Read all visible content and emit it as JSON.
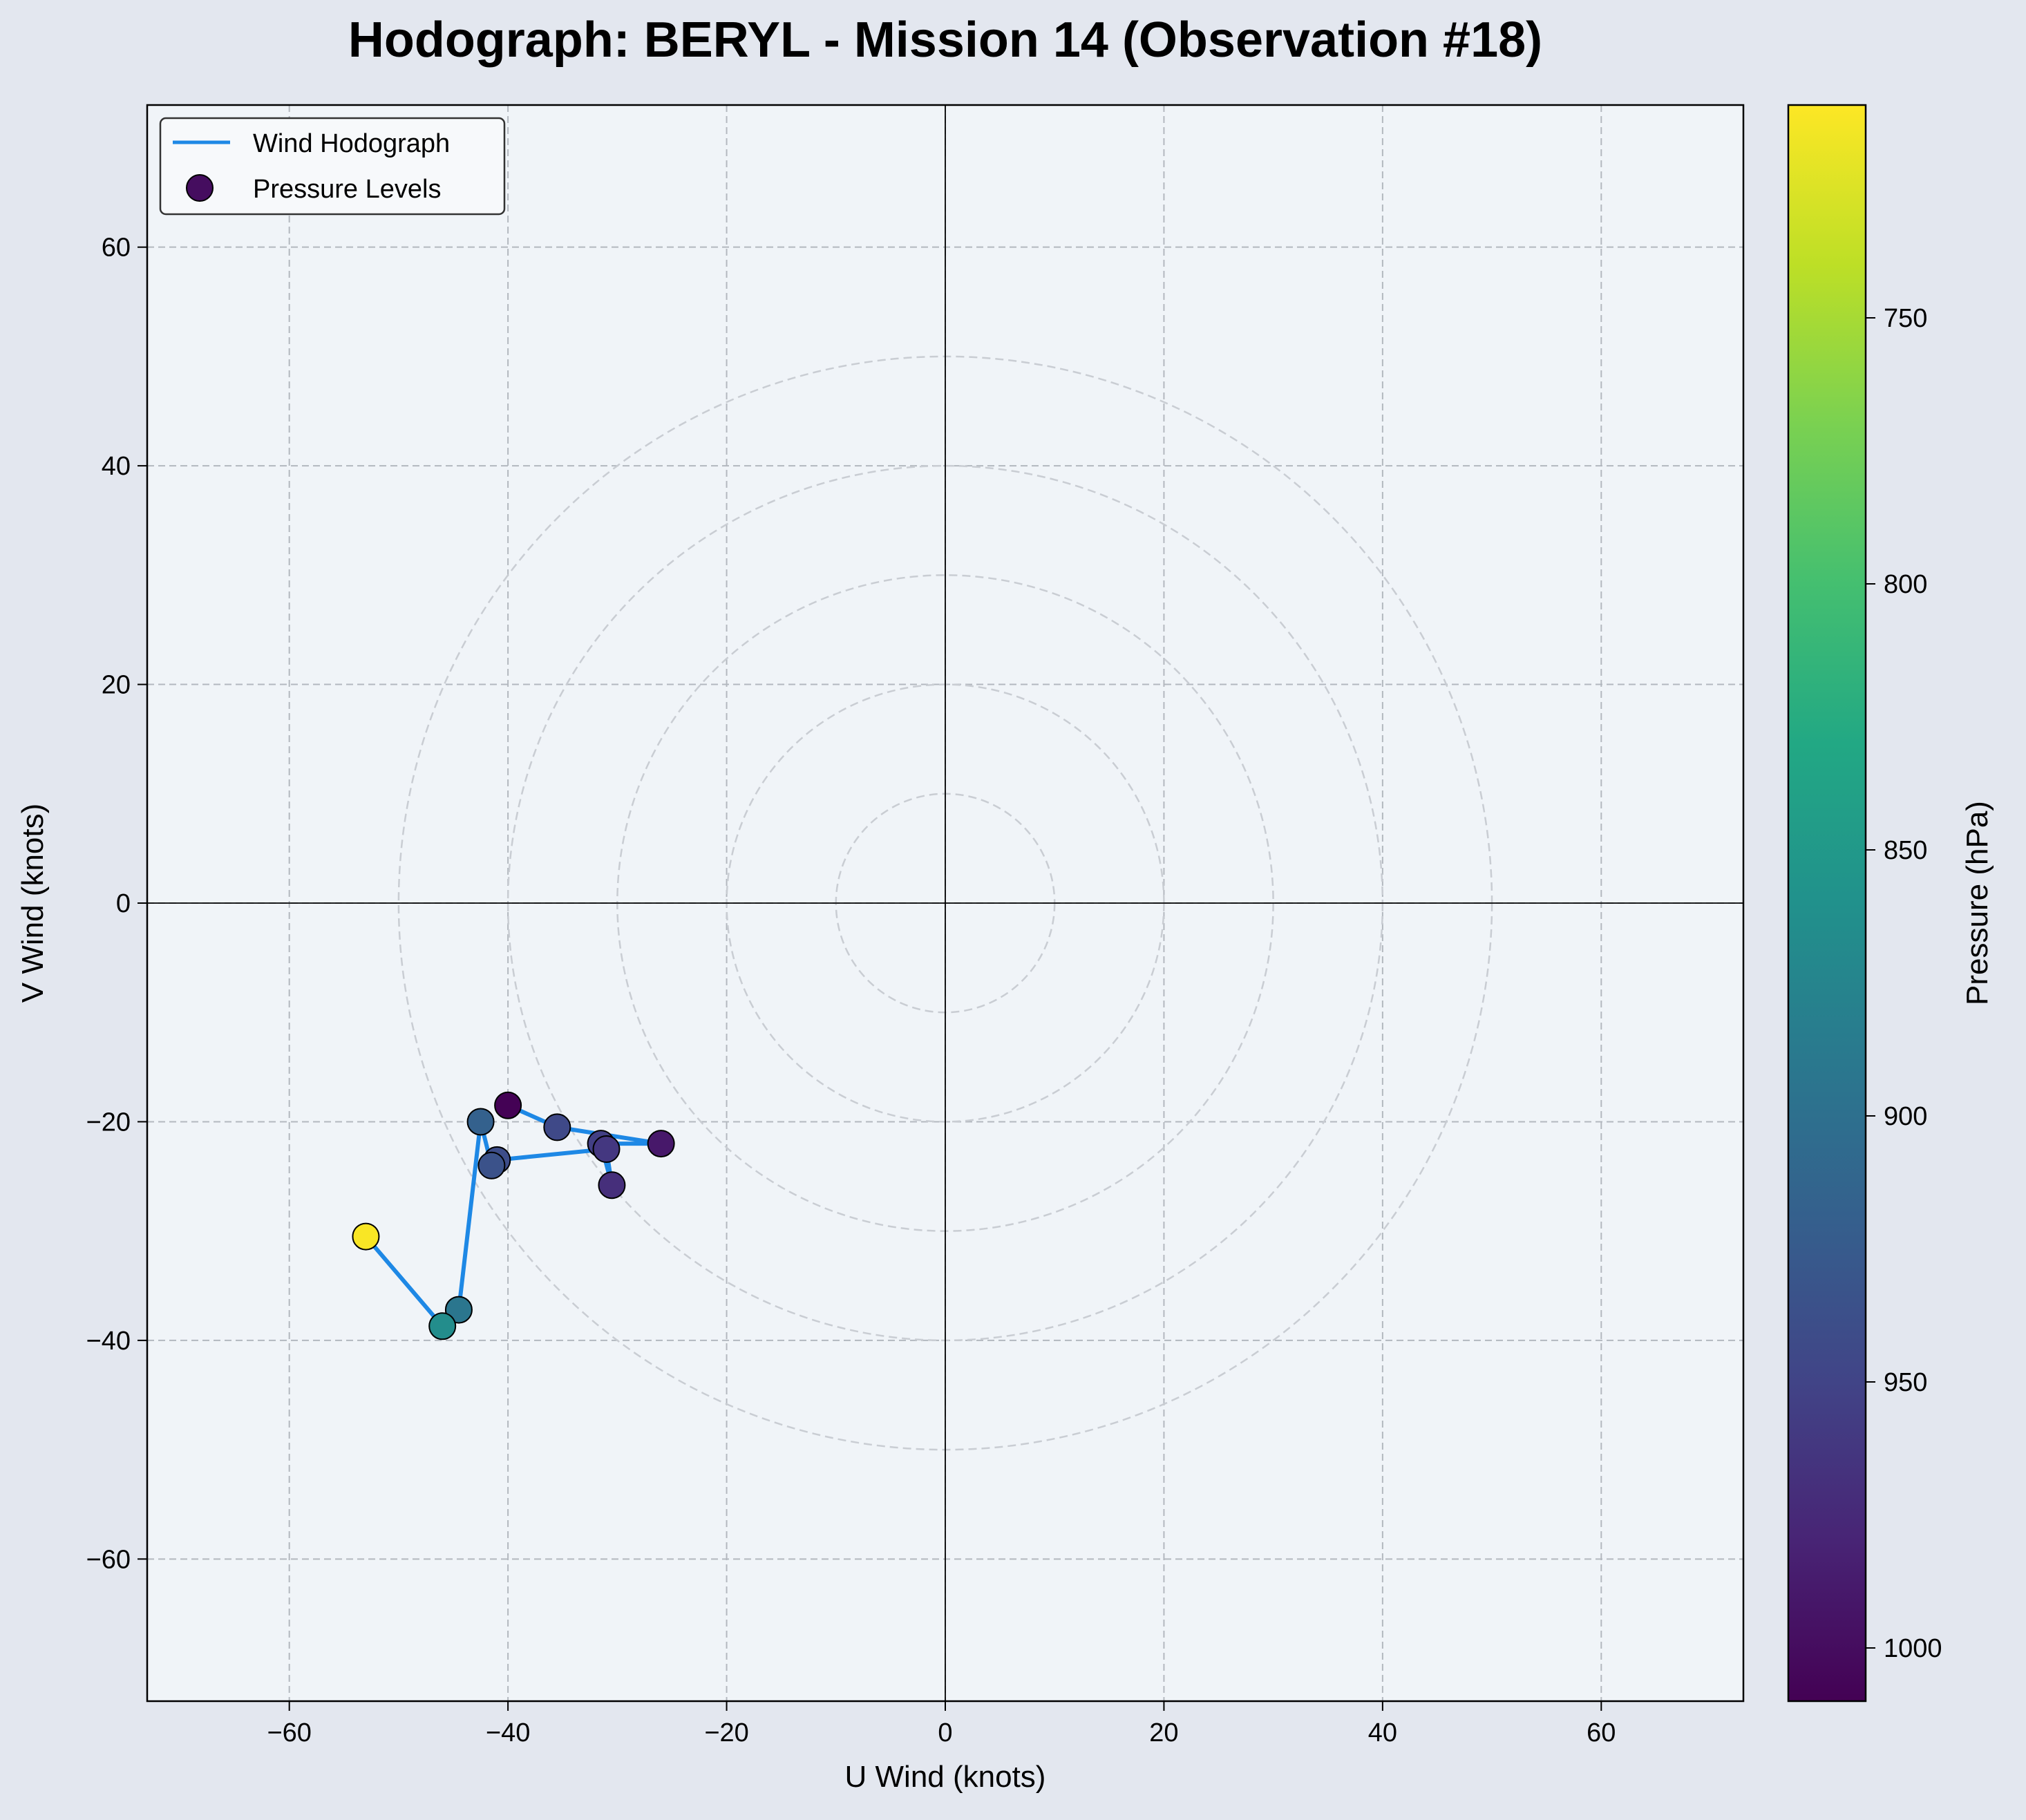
{
  "chart_data": {
    "type": "scatter",
    "title": "Hodograph: BERYL - Mission 14 (Observation #18)",
    "xlabel": "U Wind (knots)",
    "ylabel": "V Wind (knots)",
    "xlim": [
      -73,
      73
    ],
    "ylim": [
      -73,
      73
    ],
    "x_ticks": [
      -60,
      -40,
      -20,
      0,
      20,
      40,
      60
    ],
    "y_ticks": [
      -60,
      -40,
      -20,
      0,
      20,
      40,
      60
    ],
    "grid": true,
    "range_rings": [
      10,
      20,
      30,
      40,
      50
    ],
    "legend": {
      "placement": "top-left",
      "entries": [
        {
          "label": "Wind Hodograph",
          "kind": "line"
        },
        {
          "label": "Pressure Levels",
          "kind": "marker"
        }
      ]
    },
    "series": [
      {
        "name": "Wind Hodograph",
        "color": "#1e88e5",
        "points": [
          {
            "u": -40.0,
            "v": -18.5,
            "p": 1009
          },
          {
            "u": -35.5,
            "v": -20.5,
            "p": 945
          },
          {
            "u": -26.0,
            "v": -22.0,
            "p": 990
          },
          {
            "u": -31.5,
            "v": -22.0,
            "p": 955
          },
          {
            "u": -30.5,
            "v": -25.8,
            "p": 970
          },
          {
            "u": -31.0,
            "v": -22.5,
            "p": 962
          },
          {
            "u": -41.0,
            "v": -23.5,
            "p": 940
          },
          {
            "u": -41.5,
            "v": -24.0,
            "p": 935
          },
          {
            "u": -42.5,
            "v": -20.0,
            "p": 918
          },
          {
            "u": -44.5,
            "v": -37.2,
            "p": 893
          },
          {
            "u": -46.0,
            "v": -38.7,
            "p": 865
          },
          {
            "u": -53.0,
            "v": -30.5,
            "p": 712
          }
        ]
      }
    ],
    "colorbar": {
      "label": "Pressure (hPa)",
      "colormap": "viridis_r",
      "range": [
        1010,
        710
      ],
      "ticks": [
        1000,
        950,
        900,
        850,
        800,
        750
      ]
    },
    "colors": {
      "figure_background": "#e3e7ef",
      "axes_background": "#f0f4f8",
      "line": "#1e88e5"
    }
  }
}
